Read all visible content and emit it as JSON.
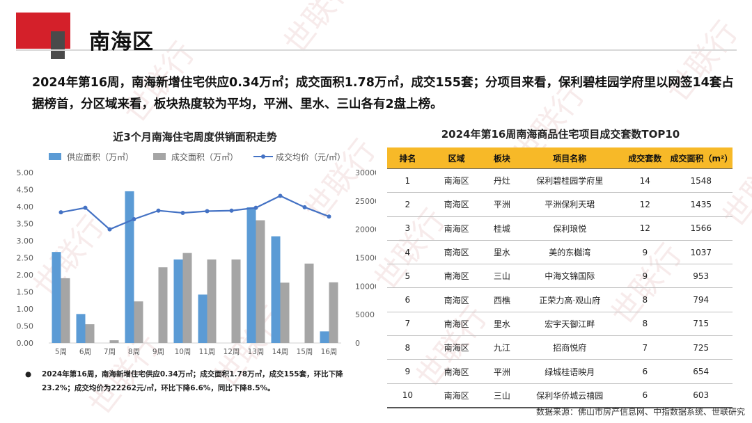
{
  "title": "南海区",
  "summary": "2024年第16周，南海新增住宅供应0.34万㎡；成交面积1.78万㎡，成交155套；分项目来看，保利碧桂园学府里以网签14套占据榜首，分区域来看，板块热度较为平均，平洲、里水、三山各有2盘上榜。",
  "note": "2024年第16周，南海新增住宅供应0.34万㎡；成交面积1.78万㎡，成交155套，环比下降23.2%；成交均价为22262元/㎡，环比下降6.6%，同比下降8.5%。",
  "source": "数据来源：佛山市房产信息网、中指数据系统、世联研究",
  "chart_data": {
    "type": "bar",
    "title": "近3个月南海住宅周度供销面积走势",
    "categories": [
      "5周",
      "6周",
      "7周",
      "8周",
      "9周",
      "10周",
      "11周",
      "12周",
      "13周",
      "14周",
      "15周",
      "16周"
    ],
    "series": [
      {
        "name": "供应面积（万㎡）",
        "type": "bar",
        "axis": "left",
        "color": "#5b9bd5",
        "values": [
          2.67,
          0.85,
          0,
          4.45,
          0,
          2.45,
          1.42,
          0,
          3.98,
          3.13,
          0,
          0.34
        ]
      },
      {
        "name": "成交面积（万㎡）",
        "type": "bar",
        "axis": "left",
        "color": "#a5a5a5",
        "values": [
          1.9,
          0.55,
          0.08,
          1.22,
          2.22,
          2.64,
          2.45,
          2.45,
          3.6,
          1.77,
          2.33,
          1.78
        ]
      },
      {
        "name": "成交均价（元/㎡）",
        "type": "line",
        "axis": "right",
        "color": "#4472c4",
        "values": [
          23000,
          23800,
          20000,
          21800,
          23300,
          22900,
          23200,
          23300,
          23800,
          25900,
          23900,
          22262
        ]
      }
    ],
    "yticks": [
      "0.00",
      "0.50",
      "1.00",
      "1.50",
      "2.00",
      "2.50",
      "3.00",
      "3.50",
      "4.00",
      "4.50",
      "5.00"
    ],
    "y2ticks": [
      "0",
      "5000",
      "10000",
      "15000",
      "20000",
      "25000",
      "30000"
    ],
    "ylim": [
      0,
      5
    ],
    "y2lim": [
      0,
      30000
    ],
    "legend": "top"
  },
  "table": {
    "title": "2024年第16周南海商品住宅项目成交套数TOP10",
    "headers": [
      "排名",
      "区域",
      "板块",
      "项目名称",
      "成交套数",
      "成交面积（m²）"
    ],
    "rows": [
      [
        "1",
        "南海区",
        "丹灶",
        "保利碧桂园学府里",
        "14",
        "1548"
      ],
      [
        "2",
        "南海区",
        "平洲",
        "平洲保利天珺",
        "12",
        "1435"
      ],
      [
        "3",
        "南海区",
        "桂城",
        "保利琅悦",
        "12",
        "1566"
      ],
      [
        "4",
        "南海区",
        "里水",
        "美的东樾湾",
        "9",
        "1037"
      ],
      [
        "5",
        "南海区",
        "三山",
        "中海文锦国际",
        "9",
        "953"
      ],
      [
        "6",
        "南海区",
        "西樵",
        "正荣力高·观山府",
        "8",
        "794"
      ],
      [
        "7",
        "南海区",
        "里水",
        "宏宇天御江畔",
        "8",
        "715"
      ],
      [
        "8",
        "南海区",
        "九江",
        "招商悦府",
        "7",
        "725"
      ],
      [
        "9",
        "南海区",
        "平洲",
        "绿城桂语映月",
        "6",
        "654"
      ],
      [
        "10",
        "南海区",
        "三山",
        "保利华侨城云禧园",
        "6",
        "603"
      ]
    ]
  },
  "watermark": "世联行",
  "colors": {
    "accent_red": "#d4202a",
    "header_gold": "#f7b928"
  }
}
